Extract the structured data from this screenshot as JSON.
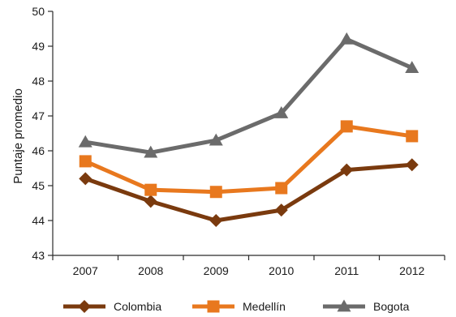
{
  "chart_data": {
    "type": "line",
    "title": "",
    "xlabel": "",
    "ylabel": "Puntaje promedio",
    "categories": [
      "2007",
      "2008",
      "2009",
      "2010",
      "2011",
      "2012"
    ],
    "ylim": [
      43,
      50
    ],
    "yticks": [
      "43",
      "44",
      "45",
      "46",
      "47",
      "48",
      "49",
      "50"
    ],
    "grid": false,
    "legend_position": "bottom",
    "series": [
      {
        "name": "Colombia",
        "marker": "diamond",
        "color": "#7a3a0e",
        "values": [
          45.2,
          44.55,
          44.0,
          44.3,
          45.45,
          45.6
        ]
      },
      {
        "name": "Medellín",
        "marker": "square",
        "color": "#e8781e",
        "values": [
          45.7,
          44.88,
          44.82,
          44.93,
          46.7,
          46.42
        ]
      },
      {
        "name": "Bogota",
        "marker": "triangle",
        "color": "#6b6b6b",
        "values": [
          46.25,
          45.95,
          46.3,
          47.08,
          49.2,
          48.38
        ]
      }
    ]
  }
}
